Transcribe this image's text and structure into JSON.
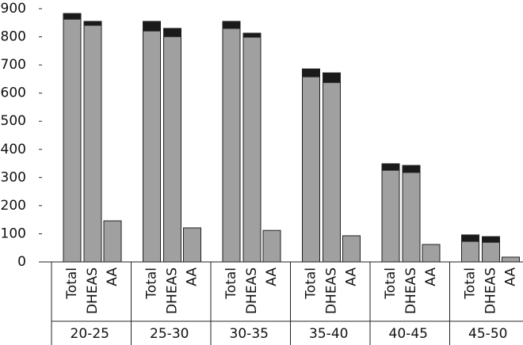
{
  "chart_data": {
    "type": "stacked_bar",
    "groups": [
      "20-25",
      "25-30",
      "30-35",
      "35-40",
      "40-45",
      "45-50"
    ],
    "categories": [
      "Total",
      "DHEAS",
      "AA",
      "Total",
      "DHEAS",
      "AA",
      "Total",
      "DHEAS",
      "AA",
      "Total",
      "DHEAS",
      "AA",
      "Total",
      "DHEAS",
      "AA",
      "Total",
      "DHEAS",
      "AA"
    ],
    "series": [
      {
        "color": "#a0a0a0",
        "values": [
          863,
          841,
          146,
          821,
          801,
          121,
          830,
          799,
          112,
          658,
          638,
          93,
          326,
          318,
          62,
          73,
          70,
          17
        ]
      },
      {
        "color": "#1a1a1a",
        "values": [
          20,
          14,
          0,
          34,
          29,
          0,
          25,
          14,
          0,
          28,
          34,
          0,
          23,
          25,
          0,
          23,
          20,
          0
        ]
      }
    ],
    "ylim": [
      0,
      900
    ],
    "yticks": [
      0,
      100,
      200,
      300,
      400,
      500,
      600,
      700,
      800,
      900
    ]
  }
}
